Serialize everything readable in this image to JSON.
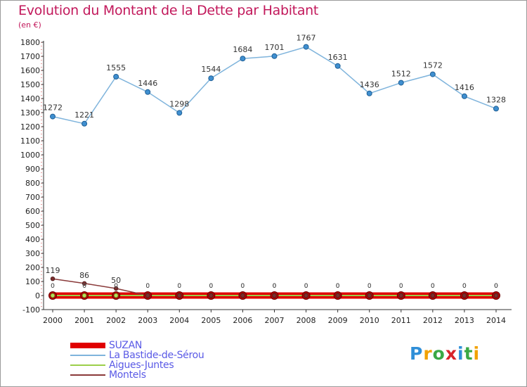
{
  "title": "Evolution du Montant de la Dette par Habitant",
  "unit": "(en €)",
  "logo": {
    "letters": [
      "P",
      "r",
      "o",
      "x",
      "i",
      "t",
      "i"
    ],
    "colors": [
      "#2f8fd8",
      "#f2a100",
      "#3aa845",
      "#d8232a",
      "#2f8fd8",
      "#3aa845",
      "#f2a100"
    ]
  },
  "chart_data": {
    "type": "line",
    "title": "Evolution du Montant de la Dette par Habitant",
    "ylabel": "(en €)",
    "x": [
      "2000",
      "2001",
      "2002",
      "2003",
      "2004",
      "2005",
      "2006",
      "2007",
      "2008",
      "2009",
      "2010",
      "2011",
      "2012",
      "2013",
      "2014"
    ],
    "ylim": [
      -100,
      1800
    ],
    "yticks": [
      -100,
      0,
      100,
      200,
      300,
      400,
      500,
      600,
      700,
      800,
      900,
      1000,
      1100,
      1200,
      1300,
      1400,
      1500,
      1600,
      1700,
      1800
    ],
    "grid": false,
    "legend_position": "bottom-left",
    "series": [
      {
        "name": "SUZAN",
        "color": "#e00000",
        "values": [
          0,
          0,
          0,
          0,
          0,
          0,
          0,
          0,
          0,
          0,
          0,
          0,
          0,
          0,
          0
        ]
      },
      {
        "name": "La Bastide-de-Sérou",
        "color": "#7fb4dc",
        "values": [
          1272,
          1221,
          1555,
          1446,
          1298,
          1544,
          1684,
          1701,
          1767,
          1631,
          1436,
          1512,
          1572,
          1416,
          1328
        ]
      },
      {
        "name": "Aigues-Juntes",
        "color": "#9ccf4a",
        "values": [
          0,
          0,
          0,
          0,
          0,
          0,
          0,
          0,
          0,
          0,
          0,
          0,
          0,
          0,
          0
        ]
      },
      {
        "name": "Montels",
        "color": "#8a3a3a",
        "values": [
          119,
          86,
          50,
          0,
          0,
          0,
          0,
          0,
          0,
          0,
          0,
          0,
          0,
          0,
          0
        ]
      }
    ]
  }
}
